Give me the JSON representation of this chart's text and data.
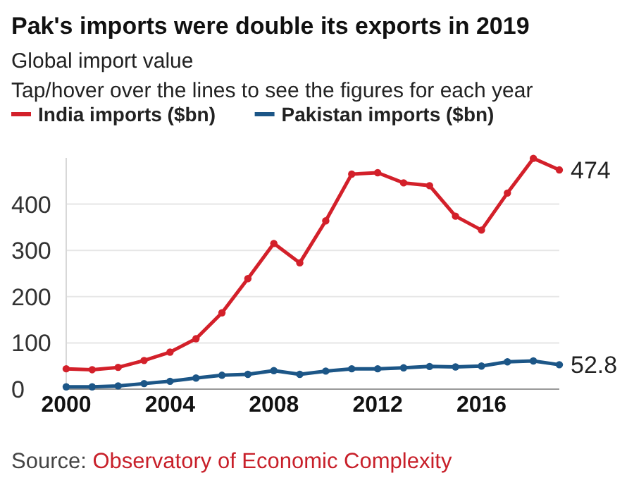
{
  "chart_data": {
    "type": "line",
    "title": "Pak's imports were double its exports in 2019",
    "subtitle": "Global import value\nTap/hover over the lines to see the figures for each year",
    "x": [
      2000,
      2001,
      2002,
      2003,
      2004,
      2005,
      2006,
      2007,
      2008,
      2009,
      2010,
      2011,
      2012,
      2013,
      2014,
      2015,
      2016,
      2017,
      2018,
      2019
    ],
    "series": [
      {
        "name": "India imports ($bn)",
        "color": "#d3202a",
        "values": [
          44,
          42,
          47,
          62,
          80,
          109,
          165,
          239,
          315,
          273,
          364,
          465,
          468,
          446,
          440,
          374,
          344,
          424,
          499,
          474
        ],
        "value_labels": [
          null,
          null,
          null,
          null,
          null,
          null,
          null,
          null,
          null,
          null,
          null,
          null,
          null,
          null,
          null,
          null,
          null,
          null,
          null,
          "474"
        ]
      },
      {
        "name": "Pakistan imports ($bn)",
        "color": "#1c5687",
        "values": [
          5,
          5,
          7,
          12,
          17,
          24,
          30,
          32,
          40,
          32,
          39,
          44,
          44,
          46,
          49,
          48,
          50,
          59,
          61,
          52.8
        ],
        "value_labels": [
          null,
          null,
          null,
          null,
          null,
          null,
          null,
          null,
          null,
          null,
          null,
          null,
          null,
          null,
          null,
          null,
          null,
          null,
          null,
          "52.8"
        ]
      }
    ],
    "xlim": [
      2000,
      2019
    ],
    "xticks": [
      2000,
      2004,
      2008,
      2012,
      2016
    ],
    "ylim": [
      0,
      500
    ],
    "yticks": [
      0,
      100,
      200,
      300,
      400
    ],
    "grid": "y",
    "legend": "top left",
    "marker": "circle",
    "line_style": "solid",
    "annotations": [
      "Source: Observatory of Economic Complexity"
    ]
  }
}
